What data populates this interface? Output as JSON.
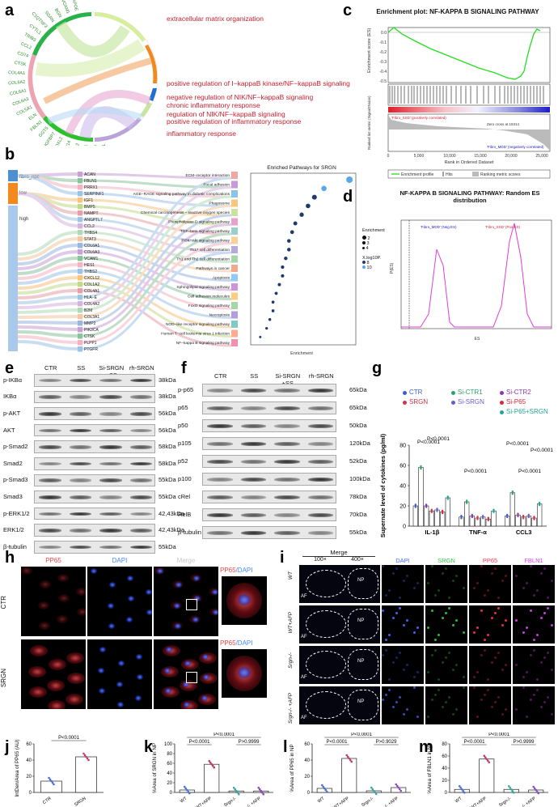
{
  "panel_labels": {
    "a": "a",
    "b": "b",
    "c": "c",
    "d": "d",
    "e": "e",
    "f": "f",
    "g": "g",
    "h": "h",
    "i": "i",
    "j": "j",
    "k": "k",
    "l": "l",
    "m": "m"
  },
  "chord": {
    "terms": [
      "extracellular matrix organization",
      "positive regulation of I−kappaB kinase/NF−kappaB signaling",
      "negative regulation of NIK/NF−kappaB signaling",
      "chronic inflammatory response",
      "regulation of NIK/NF−kappaB signaling",
      "positive regulation of inflammatory response",
      "inflammatory response"
    ],
    "genes": [
      "PLOD1",
      "ADAMTS5",
      "COL1A1",
      "MMP2",
      "MMP14",
      "LOXL2",
      "IGFBP7",
      "GGT5",
      "FBLN1",
      "ELN",
      "COL5A1",
      "COL6A3",
      "COL6A1",
      "COL6A2",
      "COL4A1",
      "CTSK",
      "CD74",
      "CCL2",
      "TRIB3",
      "CYTL1",
      "C1QTNF3",
      "SGRN",
      "BGN",
      "VCAM1",
      "APOE"
    ]
  },
  "enrich_plot": {
    "title": "Enrichment plot: NF-KAPPA B SIGNALING PATHWAY",
    "y1": "Enrichment score (ES)",
    "y2": "Ranked list metric (Signal2Noise)",
    "xlabel": "Rank in Ordered Dataset",
    "xticks": [
      "0",
      "5,000",
      "10,000",
      "15,000",
      "20,000",
      "25,000"
    ],
    "yticks": [
      "0.0",
      "-0.1",
      "-0.2",
      "-0.3",
      "-0.4",
      "-0.5"
    ],
    "pos_label": "'Fibro_SSD' (positively correlated)",
    "neg_label": "'Fibro_MDD' (negatively correlated)",
    "zero_cross": "Zero cross at 15314",
    "legend": [
      "Enrichment profile",
      "Hits",
      "Ranking metric scores"
    ]
  },
  "random_es": {
    "title": "NF-KAPPA B SIGNALING PATHWAY: Random ES distribution",
    "ylabel": "P(ES)",
    "xlabel": "ES",
    "left_tag": "'Fibro_MDD' (Neg ES)",
    "right_tag": "'Fibro_SSD' (Pos ES)"
  },
  "sankey": {
    "groups": [
      "fibro_npc",
      "low",
      "high"
    ],
    "genes": [
      "ACAN",
      "FBLN1",
      "PRRX1",
      "SERPINF1",
      "IGF1",
      "BMP5",
      "NAMPT",
      "ANGPTL7",
      "CCL2",
      "THBS4",
      "STAT3",
      "COL6A1",
      "COL6A3",
      "VCAM1",
      "HES1",
      "THBS2",
      "CXCL12",
      "COL1A2",
      "COL4A1",
      "HLA−E",
      "COL4A2",
      "B2M",
      "COL3A1",
      "MMP2",
      "PIK3CA",
      "CTSK",
      "PLPP1",
      "PTGFR"
    ],
    "pathways": [
      "ECM−receptor interaction",
      "Focal adhesion",
      "AGE−RAGE signaling pathway in diabetic complications",
      "Phagosome",
      "Chemical carcinogenesis − reactive oxygen species",
      "Phospholipase D signaling pathway",
      "TGF−beta signaling pathway",
      "PI3K−Akt signaling pathway",
      "Th17 cell differentiation",
      "Th1 and Th2 cell differentiation",
      "Pathways in cancer",
      "Apoptosis",
      "Sphingolipid signaling pathway",
      "Cell adhesion molecules",
      "FoxO signaling pathway",
      "Necroptosis",
      "NOD−like receptor signaling pathway",
      "Human T−cell leukemia virus 1 infection",
      "NF−kappa B signaling pathway"
    ],
    "dot_title": "Enriched Pathways for SRGN",
    "dot_xlabel": "Enrichment",
    "legend_title1": "Enrichment",
    "legend_vals1": [
      "2",
      "3",
      "4"
    ],
    "legend_title2": "X.log10P.",
    "legend_vals2": [
      "8",
      "10"
    ]
  },
  "chart_data": [
    {
      "type": "scatter",
      "title": "Enriched Pathways for SRGN",
      "xlabel": "Enrichment",
      "x": [
        4.6,
        3.8,
        3.5,
        3.3,
        3.1,
        2.9,
        2.8,
        2.7,
        2.7,
        2.6,
        2.5,
        2.5,
        2.4,
        2.3,
        2.2,
        2.2,
        2.1,
        2.0,
        1.8
      ]
    },
    {
      "type": "bar",
      "title": "",
      "ylabel": "Supernate level of cytokines (pg/ml)",
      "categories": [
        "IL-1β",
        "TNF-α",
        "CCL3"
      ],
      "ylim": [
        0,
        80
      ],
      "yticks": [
        "0",
        "20",
        "40",
        "60",
        "80"
      ],
      "series": [
        {
          "name": "CTR",
          "values": [
            20,
            9,
            10
          ]
        },
        {
          "name": "SRGN",
          "values": [
            58,
            24,
            33
          ]
        },
        {
          "name": "Si-CTR1",
          "values": [
            20,
            10,
            11
          ]
        },
        {
          "name": "Si-SRGN",
          "values": [
            15,
            8,
            9
          ]
        },
        {
          "name": "Si-CTR2",
          "values": [
            16,
            9,
            10
          ]
        },
        {
          "name": "Si-P65",
          "values": [
            14,
            7,
            8
          ]
        },
        {
          "name": "Si-P65+SRGN",
          "values": [
            28,
            15,
            22
          ]
        }
      ],
      "pvalue": "P<0.0001"
    },
    {
      "type": "bar",
      "ylabel": "IntDen/Area of PP65 (AU)",
      "categories": [
        "CTR",
        "SRGN"
      ],
      "values": [
        14,
        44
      ],
      "ylim": [
        0,
        60
      ],
      "yticks": [
        "0",
        "20",
        "40",
        "60"
      ],
      "pvalue": "P<0.0001"
    },
    {
      "type": "bar",
      "ylabel": "%Area of SRGN in NP",
      "categories": [
        "WT",
        "WT+AFP",
        "Srgn-/-",
        "Srgn-/- +AFP"
      ],
      "values": [
        5,
        58,
        3,
        3
      ],
      "ylim": [
        0,
        100
      ],
      "yticks": [
        "0",
        "20",
        "40",
        "60",
        "80",
        "100"
      ],
      "pvalues": [
        "P<0.0001",
        "P<0.0001",
        "P>0.9999"
      ]
    },
    {
      "type": "bar",
      "ylabel": "%Area of PP65 in NP",
      "categories": [
        "WT",
        "WT+AFP",
        "Srgn-/-",
        "Srgn-/- +AFP"
      ],
      "values": [
        5,
        42,
        2,
        6
      ],
      "ylim": [
        0,
        60
      ],
      "yticks": [
        "0",
        "20",
        "40",
        "60"
      ],
      "pvalues": [
        "P<0.0001",
        "P<0.0001",
        "P>0.9029"
      ]
    },
    {
      "type": "bar",
      "ylabel": "%Area of FBLN1 in NP",
      "categories": [
        "WT",
        "WT+AFP",
        "Srgn-/-",
        "Srgn-/- +AFP"
      ],
      "values": [
        5,
        55,
        5,
        4
      ],
      "ylim": [
        0,
        80
      ],
      "yticks": [
        "0",
        "20",
        "40",
        "60",
        "80"
      ],
      "pvalues": [
        "P<0.0001",
        "P<0.0001",
        "P>0.9999"
      ]
    }
  ],
  "blot_e": {
    "lanes": [
      "CTR",
      "SS",
      "Si-SRGN +SS",
      "rh-SRGN"
    ],
    "rows": [
      {
        "name": "p-IKBα",
        "kda": "38kDa"
      },
      {
        "name": "IKBα",
        "kda": "38kDa"
      },
      {
        "name": "p-AKT",
        "kda": "56kDa"
      },
      {
        "name": "AKT",
        "kda": "56kDa"
      },
      {
        "name": "p-Smad2",
        "kda": "58kDa"
      },
      {
        "name": "Smad2",
        "kda": "58kDa"
      },
      {
        "name": "p-Smad3",
        "kda": "55kDa"
      },
      {
        "name": "Smad3",
        "kda": "55kDa"
      },
      {
        "name": "p-ERK1/2",
        "kda": "42,43kDa"
      },
      {
        "name": "ERK1/2",
        "kda": "42,43kDa"
      },
      {
        "name": "β-tubulin",
        "kda": "55kDa"
      }
    ]
  },
  "blot_f": {
    "lanes": [
      "CTR",
      "SS",
      "Si-SRGN +SS",
      "rh-SRGN"
    ],
    "rows": [
      {
        "name": "p-p65",
        "kda": "65kDa"
      },
      {
        "name": "p65",
        "kda": "65kDa"
      },
      {
        "name": "p50",
        "kda": "50kDa"
      },
      {
        "name": "p105",
        "kda": "120kDa"
      },
      {
        "name": "p52",
        "kda": "52kDa"
      },
      {
        "name": "p100",
        "kda": "100kDa"
      },
      {
        "name": "cRel",
        "kda": "78kDa"
      },
      {
        "name": "RelB",
        "kda": "70kDa"
      },
      {
        "name": "β-tubulin",
        "kda": "55kDa"
      }
    ]
  },
  "panel_g_legend": [
    {
      "label": "CTR",
      "color": "#3d5ccf"
    },
    {
      "label": "Si-CTR1",
      "color": "#2aa36b"
    },
    {
      "label": "Si-CTR2",
      "color": "#8a3aa8"
    },
    {
      "label": "SRGN",
      "color": "#d0334a"
    },
    {
      "label": "Si-SRGN",
      "color": "#6b5ccf"
    },
    {
      "label": "Si-P65",
      "color": "#e2243a"
    },
    {
      "label": "Si-P65+SRGN",
      "color": "#1fa59a"
    }
  ],
  "panel_h": {
    "cols": [
      "PP65",
      "DAPI",
      "Merge"
    ],
    "rows": [
      "CTR",
      "SRGN"
    ],
    "inset_label_a": "PP65",
    "inset_label_b": "/DAPI"
  },
  "panel_i": {
    "merge_header": "Merge",
    "mag_100": "100×",
    "mag_400": "400×",
    "channels": [
      "DAPI",
      "SRGN",
      "PP65",
      "FBLN1"
    ],
    "rows": [
      "WT",
      "WT+AFP",
      "Srgn-/-",
      "Srgn-/- +AFP"
    ],
    "np": "NP",
    "af": "AF"
  },
  "colors": {
    "up_red": "#c8202f",
    "green_es": "#22e01f",
    "magenta_es": "#e13bd7",
    "bar_outline": "#222222"
  }
}
